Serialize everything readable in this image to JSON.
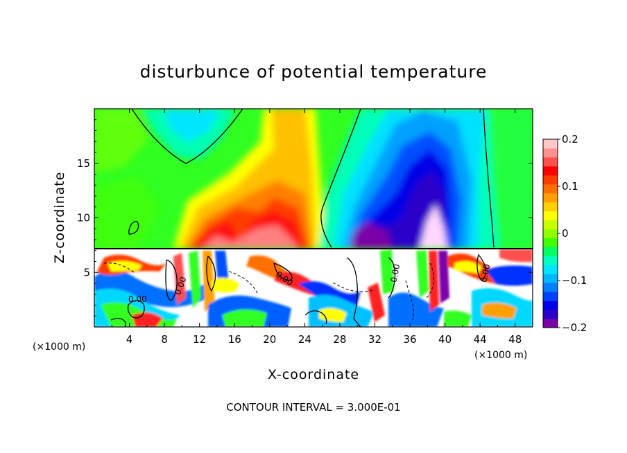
{
  "chart_data": {
    "type": "heatmap",
    "title": "disturbunce of potential temperature",
    "xlabel": "X-coordinate",
    "ylabel": "Z-coordinate",
    "x_unit_left": "(×1000 m)",
    "x_unit_right": "(×1000 m)",
    "xlim": [
      0,
      50
    ],
    "ylim": [
      0,
      20
    ],
    "x_ticks": [
      4,
      8,
      12,
      16,
      20,
      24,
      28,
      32,
      36,
      40,
      44,
      48
    ],
    "y_ticks": [
      5,
      10,
      15
    ],
    "contour_interval_text": "CONTOUR INTERVAL = 3.000E-01",
    "contour_labels": [
      "0.00",
      "0.00",
      "0.00",
      "0.00",
      "0.00"
    ],
    "colorbar": {
      "min": -0.2,
      "max": 0.2,
      "tick_values": [
        0.2,
        0.1,
        0,
        -0.1,
        -0.2
      ],
      "tick_labels": [
        "0.2",
        "0.1",
        "0",
        "−0.1",
        "−0.2"
      ],
      "colors": [
        "#7c00a8",
        "#2b00c8",
        "#0000e6",
        "#0040ff",
        "#0080ff",
        "#00b4ff",
        "#00e6ff",
        "#00ffc0",
        "#00ff60",
        "#40ff00",
        "#90ff00",
        "#c8ff00",
        "#ffff00",
        "#ffd000",
        "#ffa000",
        "#ff7000",
        "#ff3c00",
        "#ff0000",
        "#ff5050",
        "#ff9090",
        "#ffc8c8"
      ]
    },
    "upper_layer_cells": [
      {
        "x": 4,
        "z": 18,
        "v": -0.02
      },
      {
        "x": 12,
        "z": 18,
        "v": -0.08
      },
      {
        "x": 20,
        "z": 18,
        "v": 0.09
      },
      {
        "x": 28,
        "z": 18,
        "v": 0.0
      },
      {
        "x": 36,
        "z": 18,
        "v": -0.12
      },
      {
        "x": 44,
        "z": 18,
        "v": -0.04
      },
      {
        "x": 4,
        "z": 14,
        "v": 0.0
      },
      {
        "x": 12,
        "z": 14,
        "v": 0.02
      },
      {
        "x": 20,
        "z": 14,
        "v": 0.1
      },
      {
        "x": 28,
        "z": 14,
        "v": -0.06
      },
      {
        "x": 36,
        "z": 14,
        "v": -0.16
      },
      {
        "x": 44,
        "z": 14,
        "v": -0.05
      },
      {
        "x": 4,
        "z": 10,
        "v": 0.01
      },
      {
        "x": 12,
        "z": 10,
        "v": 0.08
      },
      {
        "x": 20,
        "z": 10,
        "v": 0.15
      },
      {
        "x": 28,
        "z": 10,
        "v": -0.1
      },
      {
        "x": 36,
        "z": 10,
        "v": -0.18
      },
      {
        "x": 44,
        "z": 10,
        "v": -0.04
      }
    ]
  }
}
